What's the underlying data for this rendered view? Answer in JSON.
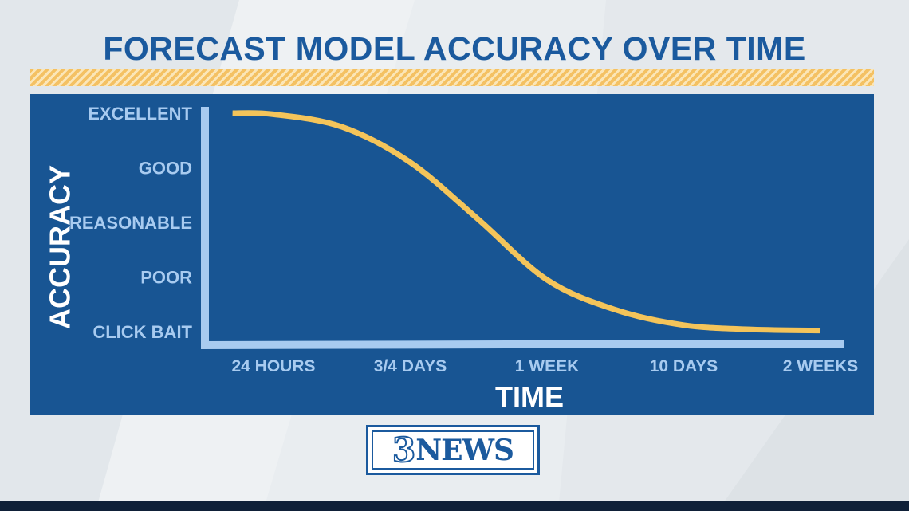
{
  "title": "FORECAST MODEL ACCURACY OVER TIME",
  "logo": {
    "number": "3",
    "word": "NEWS"
  },
  "colors": {
    "title": "#1b5a9e",
    "panel": "#185593",
    "axis": "#a8cbf0",
    "curve": "#f4c45a",
    "accent_hatch": "#f4c163"
  },
  "chart_data": {
    "type": "line",
    "title": "FORECAST MODEL ACCURACY OVER TIME",
    "xlabel": "TIME",
    "ylabel": "ACCURACY",
    "categories": [
      "24 HOURS",
      "3/4 DAYS",
      "1 WEEK",
      "10 DAYS",
      "2 WEEKS"
    ],
    "y_levels": [
      "CLICK BAIT",
      "POOR",
      "REASONABLE",
      "GOOD",
      "EXCELLENT"
    ],
    "ylim": [
      0,
      4
    ],
    "grid": false,
    "legend": "none",
    "series": [
      {
        "x": [
          -0.3,
          0,
          0.5,
          1,
          1.5,
          2,
          2.5,
          3,
          3.5,
          4
        ],
        "y": [
          4.0,
          3.98,
          3.75,
          3.1,
          2.05,
          0.95,
          0.4,
          0.12,
          0.04,
          0.02
        ]
      }
    ]
  }
}
